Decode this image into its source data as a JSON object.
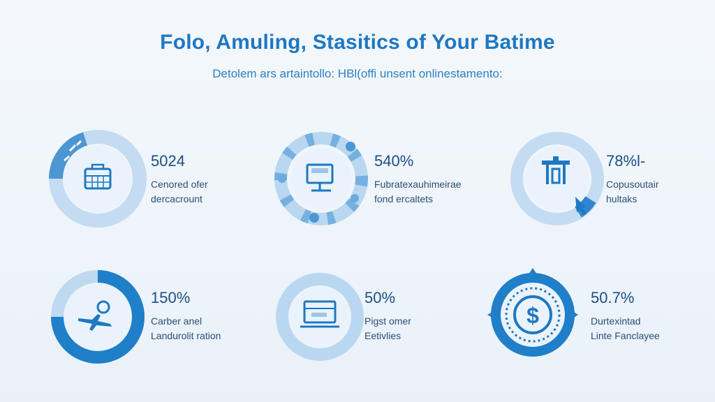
{
  "header": {
    "title": "Folo, Amuling, Stasitics of Your Batime",
    "subtitle": "Detolem ars artaintollo: HBl(offi unsent onlinestamento:"
  },
  "colors": {
    "primary": "#1e78c2",
    "light_ring": "#b9d7f0",
    "dark_ring": "#1f7fc8",
    "icon_bg": "#eaf3fb"
  },
  "stats": [
    {
      "value": "5024",
      "line1": "Cenored ofer",
      "line2": "dercacrount",
      "icon": "calendar-icon",
      "fill": 0.12
    },
    {
      "value": "540%",
      "line1": "Fubratexauhimeirae",
      "line2": "fond ercaltets",
      "icon": "monitor-icon",
      "fill": 0.0
    },
    {
      "value": "78%l-",
      "line1": "Copusoutair",
      "line2": "hultaks",
      "icon": "building-icon",
      "fill": 0.08
    },
    {
      "value": "150%",
      "line1": "Carber anel",
      "line2": "Landurolit ration",
      "icon": "airplane-icon",
      "fill": 0.8
    },
    {
      "value": "50%",
      "line1": "Pigst omer",
      "line2": "Eetivlies",
      "icon": "laptop-icon",
      "fill": 0.0
    },
    {
      "value": "50.7%",
      "line1": "Durtexintad",
      "line2": "Linte Fanclayee",
      "icon": "dollar-icon",
      "fill": 1.0
    }
  ]
}
